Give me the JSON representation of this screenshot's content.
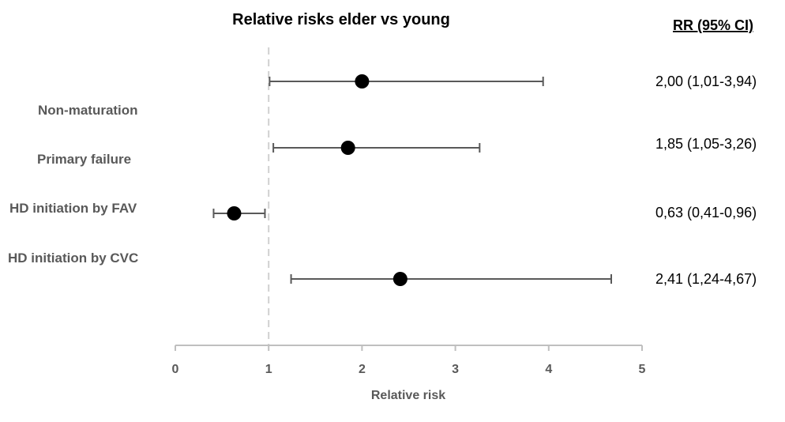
{
  "chart_data": {
    "type": "scatter",
    "subtype": "forest-plot",
    "title": "Relative risks elder vs young",
    "xlabel": "Relative risk",
    "ylabel": "",
    "xlim": [
      0,
      5
    ],
    "x_ticks": [
      "0",
      "1",
      "2",
      "3",
      "4",
      "5"
    ],
    "reference_line": 1,
    "ci_header": "RR (95% CI)",
    "categories": [
      "Non-maturation",
      "Primary failure",
      "HD initiation by FAV",
      "HD initiation by CVC"
    ],
    "estimates": [
      {
        "rr": 2.0,
        "lower": 1.01,
        "upper": 3.94,
        "label": "2,00 (1,01-3,94)"
      },
      {
        "rr": 1.85,
        "lower": 1.05,
        "upper": 3.26,
        "label": "1,85 (1,05-3,26)"
      },
      {
        "rr": 0.63,
        "lower": 0.41,
        "upper": 0.96,
        "label": "0,63 (0,41-0,96)"
      },
      {
        "rr": 2.41,
        "lower": 1.24,
        "upper": 4.67,
        "label": "2,41 (1,24-4,67)"
      }
    ],
    "colors": {
      "marker": "#000000",
      "whisker": "#595959",
      "axis": "#bfbfbf",
      "reference": "#d0d0d0",
      "label": "#595959"
    }
  }
}
